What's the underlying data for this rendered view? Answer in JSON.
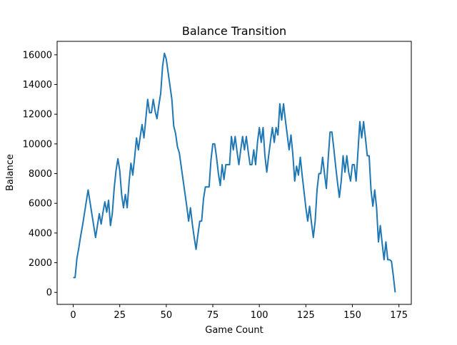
{
  "chart_data": {
    "type": "line",
    "title": "Balance Transition",
    "x_label": "Game Count",
    "y_label": "Balance",
    "x": [
      0,
      1,
      2,
      3,
      4,
      5,
      6,
      7,
      8,
      9,
      10,
      11,
      12,
      13,
      14,
      15,
      16,
      17,
      18,
      19,
      20,
      21,
      22,
      23,
      24,
      25,
      26,
      27,
      28,
      29,
      30,
      31,
      32,
      33,
      34,
      35,
      36,
      37,
      38,
      39,
      40,
      41,
      42,
      43,
      44,
      45,
      46,
      47,
      48,
      49,
      50,
      51,
      52,
      53,
      54,
      55,
      56,
      57,
      58,
      59,
      60,
      61,
      62,
      63,
      64,
      65,
      66,
      67,
      68,
      69,
      70,
      71,
      72,
      73,
      74,
      75,
      76,
      77,
      78,
      79,
      80,
      81,
      82,
      83,
      84,
      85,
      86,
      87,
      88,
      89,
      90,
      91,
      92,
      93,
      94,
      95,
      96,
      97,
      98,
      99,
      100,
      101,
      102,
      103,
      104,
      105,
      106,
      107,
      108,
      109,
      110,
      111,
      112,
      113,
      114,
      115,
      116,
      117,
      118,
      119,
      120,
      121,
      122,
      123,
      124,
      125,
      126,
      127,
      128,
      129,
      130,
      131,
      132,
      133,
      134,
      135,
      136,
      137,
      138,
      139,
      140,
      141,
      142,
      143,
      144,
      145,
      146,
      147,
      148,
      149,
      150,
      151,
      152,
      153,
      154,
      155,
      156,
      157,
      158,
      159,
      160,
      161,
      162,
      163,
      164,
      165,
      166,
      167,
      168,
      169,
      170,
      171,
      172,
      173
    ],
    "series": [
      {
        "name": "Balance",
        "color": "#1f77b4",
        "values": [
          1000,
          1000,
          2300,
          3000,
          3800,
          4500,
          5300,
          6100,
          6900,
          6100,
          5300,
          4500,
          3700,
          4500,
          5300,
          4600,
          5400,
          6100,
          5400,
          6200,
          4500,
          5300,
          7000,
          8200,
          9000,
          8200,
          6600,
          5700,
          6600,
          5700,
          7400,
          8700,
          7900,
          9100,
          10400,
          9600,
          10500,
          11300,
          10400,
          11700,
          13000,
          12100,
          12100,
          13000,
          12200,
          11700,
          12600,
          13400,
          15200,
          16100,
          15700,
          14800,
          13900,
          13000,
          11200,
          10700,
          9800,
          9400,
          8500,
          7600,
          6700,
          5800,
          4800,
          5700,
          4600,
          3700,
          2900,
          3900,
          4800,
          4800,
          6300,
          7100,
          7100,
          7100,
          8900,
          10000,
          10000,
          9100,
          8000,
          7200,
          8600,
          7600,
          8600,
          8600,
          8600,
          10500,
          9600,
          10500,
          9500,
          8600,
          9600,
          10500,
          9600,
          10500,
          9500,
          8600,
          8600,
          9600,
          8600,
          10100,
          11100,
          10100,
          11100,
          9200,
          8100,
          9200,
          10200,
          11100,
          10100,
          11100,
          10600,
          12700,
          11600,
          12700,
          11600,
          10600,
          9600,
          10600,
          9300,
          7500,
          8500,
          7900,
          9100,
          7900,
          6800,
          5700,
          4800,
          5800,
          4700,
          3700,
          4800,
          6900,
          8000,
          8000,
          9100,
          8000,
          7000,
          9000,
          10800,
          10800,
          9700,
          8500,
          7400,
          6400,
          7500,
          9200,
          8100,
          9200,
          8100,
          7500,
          8600,
          8600,
          7500,
          9500,
          11500,
          10400,
          11500,
          10400,
          9200,
          9200,
          6900,
          5800,
          6900,
          5700,
          3400,
          4500,
          3300,
          2200,
          3400,
          2200,
          2200,
          2100,
          1100,
          0
        ]
      }
    ],
    "xlim": [
      -8.65,
      181.65
    ],
    "xticks": [
      0,
      25,
      50,
      75,
      100,
      125,
      150,
      175
    ],
    "ylim": [
      -805,
      16905
    ],
    "yticks": [
      0,
      2000,
      4000,
      6000,
      8000,
      10000,
      12000,
      14000,
      16000
    ]
  }
}
